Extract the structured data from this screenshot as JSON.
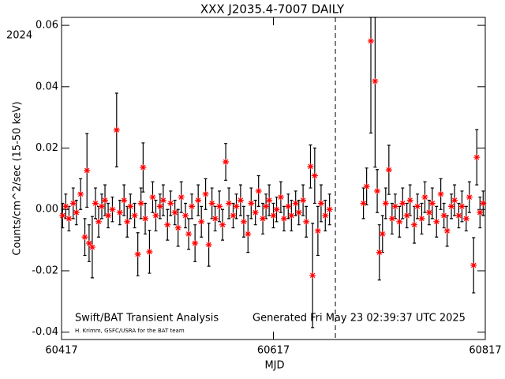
{
  "chart_data": {
    "type": "scatter",
    "title": "XXX J2035.4-7007 DAILY",
    "year_label": "2024",
    "xlabel": "MJD",
    "ylabel": "Counts/cm^2/sec (15-50 keV)",
    "annotations": [
      "Swift/BAT Transient Analysis",
      "Generated Fri May 23 02:39:37 UTC 2025",
      "H. Krimm, GSFC/USRA for the BAT team"
    ],
    "color": "#ff0000",
    "xlim": [
      60417,
      60817
    ],
    "ylim": [
      -0.0424,
      0.0626
    ],
    "xticks": [
      60417,
      60617,
      60817
    ],
    "yticks": [
      -0.04,
      -0.02,
      {
        "value": 0,
        "label": "0.00"
      },
      0.02,
      0.04,
      0.06
    ],
    "vline": 60675.5,
    "x": [
      60418,
      60421,
      60424,
      60428,
      60431,
      60435,
      60439,
      60441,
      60443,
      60446,
      60449,
      60452,
      60455,
      60458,
      60461,
      60465,
      60469,
      60472,
      60476,
      60479,
      60482,
      60486,
      60489,
      60492,
      60494,
      60496,
      60500,
      60503,
      60506,
      60510,
      60513,
      60517,
      60520,
      60524,
      60527,
      60530,
      60534,
      60537,
      60540,
      60543,
      60546,
      60549,
      60553,
      60556,
      60559,
      60562,
      60566,
      60569,
      60572,
      60575,
      60579,
      60582,
      60586,
      60589,
      60593,
      60596,
      60600,
      60603,
      60607,
      60610,
      60613,
      60617,
      60620,
      60624,
      60627,
      60631,
      60634,
      60638,
      60641,
      60645,
      60648,
      60652,
      60654,
      60656,
      60659,
      60662,
      60666,
      60670,
      60702,
      60705,
      60709,
      60713,
      60715,
      60717,
      60720,
      60723,
      60726,
      60729,
      60732,
      60736,
      60739,
      60743,
      60746,
      60750,
      60753,
      60757,
      60760,
      60764,
      60767,
      60771,
      60775,
      60778,
      60781,
      60785,
      60788,
      60792,
      60795,
      60799,
      60802,
      60806,
      60809,
      60812,
      60815
    ],
    "values": [
      -0.002,
      0.001,
      -0.003,
      0.002,
      -0.001,
      0.005,
      -0.009,
      0.0127,
      -0.011,
      -0.0123,
      0.002,
      -0.004,
      0.001,
      0.003,
      -0.002,
      0.0,
      0.0259,
      -0.001,
      0.003,
      -0.004,
      0.001,
      -0.002,
      -0.0146,
      0.002,
      0.0137,
      -0.003,
      -0.0138,
      0.004,
      -0.002,
      0.001,
      0.003,
      -0.005,
      0.002,
      -0.001,
      -0.006,
      0.004,
      -0.002,
      -0.008,
      0.001,
      -0.011,
      0.003,
      -0.004,
      0.005,
      -0.0115,
      0.002,
      -0.003,
      0.001,
      -0.005,
      0.0155,
      0.002,
      -0.002,
      0.001,
      0.003,
      -0.004,
      -0.008,
      0.002,
      -0.001,
      0.006,
      -0.003,
      0.001,
      0.003,
      -0.002,
      0.0,
      0.004,
      -0.003,
      0.001,
      -0.002,
      0.002,
      -0.001,
      0.003,
      -0.004,
      0.014,
      -0.0215,
      0.011,
      -0.007,
      0.002,
      -0.002,
      0.0,
      0.002,
      0.0075,
      0.0549,
      0.0418,
      0.006,
      -0.014,
      -0.008,
      0.002,
      0.0129,
      -0.003,
      0.001,
      -0.004,
      0.002,
      -0.002,
      0.003,
      -0.005,
      0.001,
      -0.003,
      0.004,
      -0.001,
      0.002,
      -0.004,
      0.005,
      -0.002,
      -0.007,
      0.001,
      0.003,
      -0.002,
      0.001,
      -0.003,
      0.004,
      -0.0182,
      0.017,
      -0.001,
      0.002
    ],
    "errors": [
      0.004,
      0.004,
      0.004,
      0.005,
      0.004,
      0.005,
      0.006,
      0.012,
      0.006,
      0.01,
      0.005,
      0.005,
      0.004,
      0.005,
      0.004,
      0.004,
      0.012,
      0.004,
      0.005,
      0.005,
      0.004,
      0.004,
      0.007,
      0.005,
      0.008,
      0.005,
      0.007,
      0.005,
      0.005,
      0.004,
      0.005,
      0.005,
      0.004,
      0.004,
      0.006,
      0.005,
      0.004,
      0.005,
      0.004,
      0.006,
      0.005,
      0.005,
      0.005,
      0.007,
      0.005,
      0.004,
      0.005,
      0.005,
      0.006,
      0.005,
      0.004,
      0.004,
      0.005,
      0.005,
      0.006,
      0.005,
      0.004,
      0.005,
      0.005,
      0.004,
      0.005,
      0.004,
      0.004,
      0.005,
      0.004,
      0.004,
      0.005,
      0.004,
      0.004,
      0.005,
      0.005,
      0.007,
      0.017,
      0.009,
      0.008,
      0.006,
      0.005,
      0.005,
      0.005,
      0.006,
      0.03,
      0.028,
      0.007,
      0.009,
      0.006,
      0.005,
      0.008,
      0.005,
      0.004,
      0.005,
      0.005,
      0.004,
      0.005,
      0.006,
      0.004,
      0.005,
      0.005,
      0.004,
      0.005,
      0.005,
      0.005,
      0.004,
      0.005,
      0.004,
      0.005,
      0.004,
      0.005,
      0.004,
      0.005,
      0.009,
      0.009,
      0.005,
      0.004
    ]
  }
}
